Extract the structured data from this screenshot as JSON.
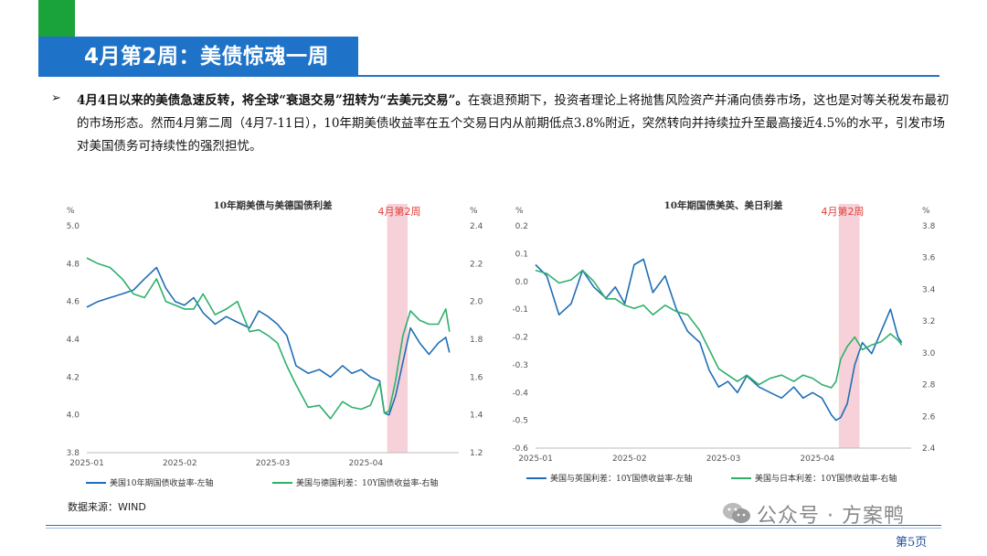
{
  "slide": {
    "title": "4月第2周：美债惊魂一周",
    "bullet": "➢",
    "para_lead": "4月4日以来的美债急速反转，将全球“衰退交易”扭转为“去美元交易”。",
    "para_rest": "在衰退预期下，投资者理论上将抛售风险资产并涌向债券市场，这也是对等关税发布最初的市场形态。然而4月第二周（4月7-11日），10年期美债收益率在五个交易日内从前期低点3.8%附近，突然转向并持续拉升至最高接近4.5%的水平，引发市场对美国债务可持续性的强烈担忧。",
    "source": "数据来源：WIND",
    "watermark": "公众号 · 方案鸭",
    "watermark_icon": "wechat-icon",
    "page": "第5页",
    "colors": {
      "brand_blue": "#1e73c8",
      "brand_green": "#1aa33a",
      "series_blue": "#1f6eb5",
      "series_green": "#2eb06a",
      "highlight": "#f6c9d2",
      "highlight_label": "#e0403a"
    }
  },
  "chart_data": [
    {
      "type": "line",
      "title": "10年期美债与美德国债利差",
      "highlight_label": "4月第2周",
      "left_unit": "%",
      "right_unit": "%",
      "ylim": [
        3.8,
        5.0
      ],
      "y2lim": [
        1.2,
        2.4
      ],
      "yticks": [
        "5.0",
        "4.8",
        "4.6",
        "4.4",
        "4.2",
        "4.0",
        "3.8"
      ],
      "y2ticks": [
        "2.4",
        "2.2",
        "2.0",
        "1.8",
        "1.6",
        "1.4",
        "1.2"
      ],
      "xticks": [
        "2025-01",
        "2025-02",
        "2025-03",
        "2025-04"
      ],
      "highlight_range": [
        3.23,
        3.45
      ],
      "series": [
        {
          "name": "美国10年期国债收益率-左轴",
          "axis": "left",
          "color": "blue",
          "x": [
            0.0,
            0.12,
            0.25,
            0.38,
            0.5,
            0.62,
            0.75,
            0.85,
            0.95,
            1.05,
            1.15,
            1.25,
            1.38,
            1.5,
            1.62,
            1.75,
            1.85,
            1.95,
            2.05,
            2.15,
            2.25,
            2.38,
            2.5,
            2.62,
            2.75,
            2.85,
            2.95,
            3.05,
            3.15,
            3.2,
            3.25,
            3.32,
            3.4,
            3.48,
            3.58,
            3.68,
            3.78,
            3.86,
            3.9
          ],
          "y": [
            4.57,
            4.6,
            4.62,
            4.64,
            4.66,
            4.72,
            4.78,
            4.67,
            4.6,
            4.58,
            4.62,
            4.54,
            4.48,
            4.52,
            4.49,
            4.46,
            4.55,
            4.52,
            4.48,
            4.42,
            4.26,
            4.22,
            4.24,
            4.2,
            4.26,
            4.22,
            4.24,
            4.2,
            4.18,
            4.01,
            4.0,
            4.1,
            4.28,
            4.46,
            4.38,
            4.32,
            4.38,
            4.41,
            4.33
          ]
        },
        {
          "name": "美国与德国利差：10Y国债收益率-右轴",
          "axis": "right",
          "color": "green",
          "x": [
            0.0,
            0.12,
            0.25,
            0.38,
            0.5,
            0.62,
            0.75,
            0.85,
            0.95,
            1.05,
            1.15,
            1.25,
            1.38,
            1.5,
            1.62,
            1.75,
            1.85,
            1.95,
            2.05,
            2.15,
            2.25,
            2.38,
            2.5,
            2.62,
            2.75,
            2.85,
            2.95,
            3.05,
            3.15,
            3.2,
            3.25,
            3.32,
            3.4,
            3.48,
            3.58,
            3.68,
            3.78,
            3.86,
            3.9
          ],
          "y": [
            2.23,
            2.2,
            2.18,
            2.12,
            2.04,
            2.02,
            2.12,
            2.0,
            1.98,
            1.96,
            1.96,
            2.04,
            1.93,
            1.96,
            2.0,
            1.84,
            1.85,
            1.82,
            1.78,
            1.66,
            1.56,
            1.44,
            1.45,
            1.38,
            1.47,
            1.44,
            1.43,
            1.45,
            1.57,
            1.41,
            1.42,
            1.58,
            1.82,
            1.95,
            1.9,
            1.88,
            1.88,
            1.96,
            1.84
          ]
        }
      ]
    },
    {
      "type": "line",
      "title": "10年期国债美英、美日利差",
      "highlight_label": "4月第2周",
      "left_unit": "%",
      "right_unit": "%",
      "ylim": [
        -0.6,
        0.2
      ],
      "y2lim": [
        2.4,
        3.8
      ],
      "yticks": [
        "0.2",
        "0.1",
        "0.0",
        "-0.1",
        "-0.2",
        "-0.3",
        "-0.4",
        "-0.5",
        "-0.6"
      ],
      "y2ticks": [
        "3.8",
        "3.6",
        "3.4",
        "3.2",
        "3.0",
        "2.8",
        "2.6",
        "2.4"
      ],
      "xticks": [
        "2025-01",
        "2025-02",
        "2025-03",
        "2025-04"
      ],
      "highlight_range": [
        3.23,
        3.45
      ],
      "series": [
        {
          "name": "美国与英国利差：10Y国债收益率-左轴",
          "axis": "left",
          "color": "blue",
          "x": [
            0.0,
            0.12,
            0.25,
            0.38,
            0.5,
            0.62,
            0.75,
            0.85,
            0.95,
            1.05,
            1.15,
            1.25,
            1.38,
            1.5,
            1.62,
            1.75,
            1.85,
            1.95,
            2.05,
            2.15,
            2.25,
            2.38,
            2.5,
            2.62,
            2.75,
            2.85,
            2.95,
            3.05,
            3.15,
            3.2,
            3.25,
            3.32,
            3.4,
            3.48,
            3.58,
            3.68,
            3.78,
            3.86,
            3.9
          ],
          "y": [
            0.06,
            0.02,
            -0.12,
            -0.08,
            0.04,
            -0.02,
            -0.06,
            -0.02,
            -0.08,
            0.06,
            0.08,
            -0.04,
            0.02,
            -0.1,
            -0.18,
            -0.22,
            -0.32,
            -0.38,
            -0.36,
            -0.4,
            -0.34,
            -0.38,
            -0.4,
            -0.42,
            -0.38,
            -0.42,
            -0.4,
            -0.42,
            -0.48,
            -0.5,
            -0.49,
            -0.44,
            -0.3,
            -0.22,
            -0.26,
            -0.18,
            -0.1,
            -0.2,
            -0.22
          ]
        },
        {
          "name": "美国与日本利差：10Y国债收益率-右轴",
          "axis": "right",
          "color": "green",
          "x": [
            0.0,
            0.12,
            0.25,
            0.38,
            0.5,
            0.62,
            0.75,
            0.85,
            0.95,
            1.05,
            1.15,
            1.25,
            1.38,
            1.5,
            1.62,
            1.75,
            1.85,
            1.95,
            2.05,
            2.15,
            2.25,
            2.38,
            2.5,
            2.62,
            2.75,
            2.85,
            2.95,
            3.05,
            3.15,
            3.2,
            3.25,
            3.32,
            3.4,
            3.48,
            3.58,
            3.68,
            3.78,
            3.86,
            3.9
          ],
          "y": [
            3.52,
            3.5,
            3.44,
            3.46,
            3.52,
            3.45,
            3.34,
            3.34,
            3.3,
            3.28,
            3.3,
            3.24,
            3.3,
            3.26,
            3.24,
            3.14,
            3.02,
            2.9,
            2.86,
            2.82,
            2.86,
            2.8,
            2.84,
            2.86,
            2.82,
            2.86,
            2.84,
            2.8,
            2.78,
            2.82,
            2.96,
            3.04,
            3.1,
            3.02,
            3.05,
            3.07,
            3.12,
            3.08,
            3.05
          ]
        }
      ]
    }
  ]
}
